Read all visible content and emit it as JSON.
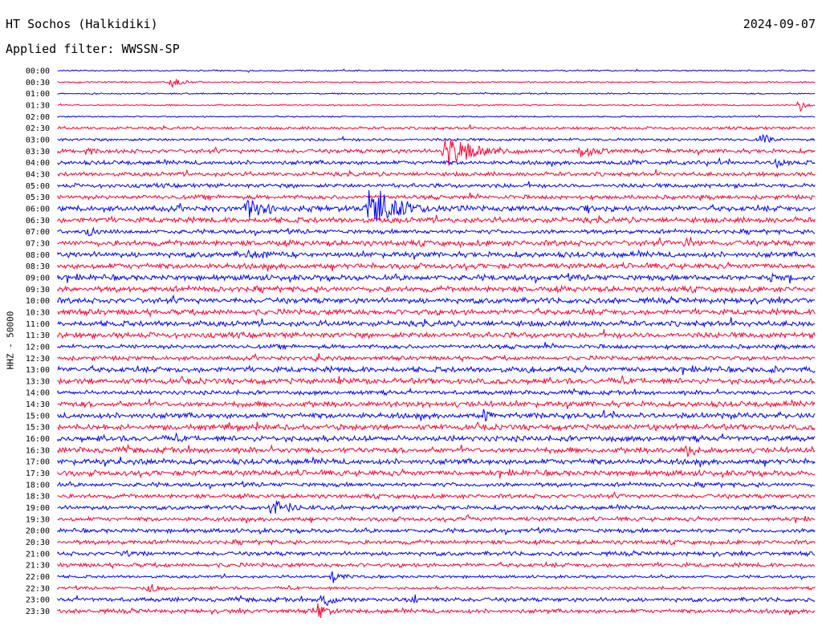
{
  "header": {
    "station": "HT Sochos (Halkidiki)",
    "date": "2024-09-07",
    "filter": "Applied filter: WWSSN-SP",
    "channel": "HHZ - 50000"
  },
  "colors": {
    "trace_a": "#0000ff",
    "trace_b": "#ff0033"
  },
  "chart_data": {
    "type": "helicorder",
    "ylabel": "HHZ - 50000",
    "row_labels": [
      "00:00",
      "00:30",
      "01:00",
      "01:30",
      "02:00",
      "02:30",
      "03:00",
      "03:30",
      "04:00",
      "04:30",
      "05:00",
      "05:30",
      "06:00",
      "06:30",
      "07:00",
      "07:30",
      "08:00",
      "08:30",
      "09:00",
      "09:30",
      "10:00",
      "10:30",
      "11:00",
      "11:30",
      "12:00",
      "12:30",
      "13:00",
      "13:30",
      "14:00",
      "14:30",
      "15:00",
      "15:30",
      "16:00",
      "16:30",
      "17:00",
      "17:30",
      "18:00",
      "18:30",
      "19:00",
      "19:30",
      "20:00",
      "20:30",
      "21:00",
      "21:30",
      "22:00",
      "22:30",
      "23:00",
      "23:30"
    ],
    "noise_level": [
      1,
      1,
      1,
      1,
      1,
      2,
      2,
      3,
      3,
      3,
      3,
      3,
      4,
      4,
      3,
      4,
      4,
      4,
      4,
      4,
      4,
      4,
      4,
      4,
      3,
      3,
      4,
      4,
      3,
      4,
      4,
      4,
      4,
      4,
      4,
      4,
      3,
      3,
      3,
      3,
      3,
      3,
      3,
      3,
      2,
      2,
      3,
      3
    ],
    "events": [
      {
        "row": 1,
        "x": 0.15,
        "amp": 8,
        "dur": 0.02
      },
      {
        "row": 3,
        "x": 0.98,
        "amp": 9,
        "dur": 0.01
      },
      {
        "row": 6,
        "x": 0.93,
        "amp": 12,
        "dur": 0.01
      },
      {
        "row": 7,
        "x": 0.51,
        "amp": 22,
        "dur": 0.06
      },
      {
        "row": 7,
        "x": 0.69,
        "amp": 10,
        "dur": 0.04
      },
      {
        "row": 7,
        "x": 0.04,
        "amp": 9,
        "dur": 0.02
      },
      {
        "row": 8,
        "x": 0.95,
        "amp": 16,
        "dur": 0.01
      },
      {
        "row": 8,
        "x": 0.74,
        "amp": 7,
        "dur": 0.04
      },
      {
        "row": 12,
        "x": 0.25,
        "amp": 15,
        "dur": 0.05
      },
      {
        "row": 12,
        "x": 0.41,
        "amp": 40,
        "dur": 0.04
      },
      {
        "row": 12,
        "x": 0.7,
        "amp": 10,
        "dur": 0.01
      },
      {
        "row": 14,
        "x": 0.04,
        "amp": 9,
        "dur": 0.02
      },
      {
        "row": 15,
        "x": 0.83,
        "amp": 11,
        "dur": 0.02
      },
      {
        "row": 16,
        "x": 0.25,
        "amp": 9,
        "dur": 0.04
      },
      {
        "row": 18,
        "x": 0.94,
        "amp": 10,
        "dur": 0.01
      },
      {
        "row": 25,
        "x": 0.34,
        "amp": 9,
        "dur": 0.02
      },
      {
        "row": 26,
        "x": 0.94,
        "amp": 10,
        "dur": 0.02
      },
      {
        "row": 26,
        "x": 0.62,
        "amp": 8,
        "dur": 0.02
      },
      {
        "row": 27,
        "x": 0.37,
        "amp": 9,
        "dur": 0.02
      },
      {
        "row": 30,
        "x": 0.56,
        "amp": 11,
        "dur": 0.02
      },
      {
        "row": 33,
        "x": 0.83,
        "amp": 11,
        "dur": 0.02
      },
      {
        "row": 34,
        "x": 0.08,
        "amp": 8,
        "dur": 0.02
      },
      {
        "row": 38,
        "x": 0.28,
        "amp": 17,
        "dur": 0.03
      },
      {
        "row": 39,
        "x": 0.54,
        "amp": 8,
        "dur": 0.01
      },
      {
        "row": 42,
        "x": 0.09,
        "amp": 8,
        "dur": 0.02
      },
      {
        "row": 44,
        "x": 0.36,
        "amp": 11,
        "dur": 0.02
      },
      {
        "row": 45,
        "x": 0.12,
        "amp": 9,
        "dur": 0.02
      },
      {
        "row": 46,
        "x": 0.35,
        "amp": 10,
        "dur": 0.03
      },
      {
        "row": 46,
        "x": 0.47,
        "amp": 9,
        "dur": 0.02
      },
      {
        "row": 47,
        "x": 0.34,
        "amp": 14,
        "dur": 0.02
      }
    ]
  }
}
